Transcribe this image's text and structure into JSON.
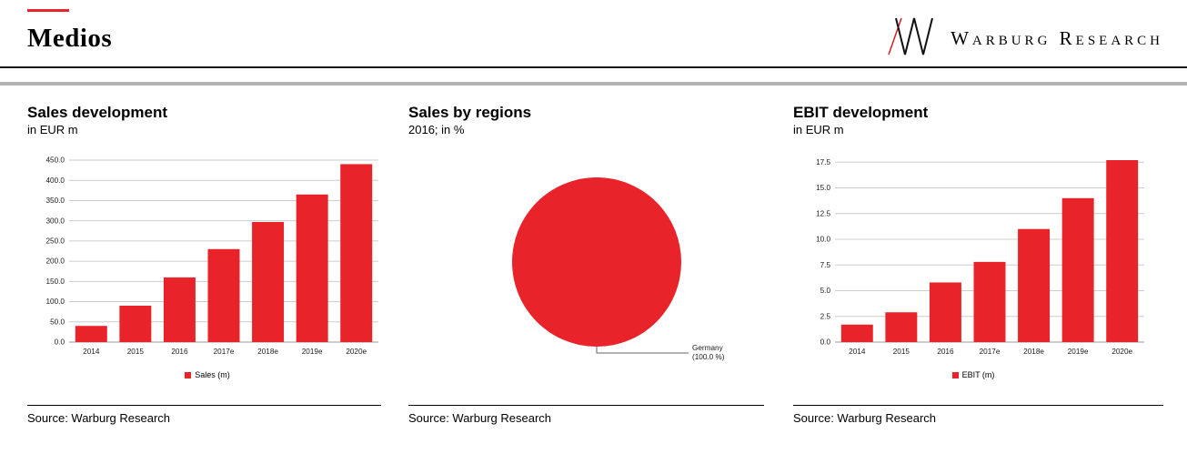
{
  "colors": {
    "accent": "#e8232a",
    "grid": "#cccccc",
    "zero_line": "#999999",
    "divider_dark": "#161616",
    "divider_gray": "#b2b2b2"
  },
  "header": {
    "title": "Medios",
    "brand": "Warburg Research"
  },
  "footer": {
    "sources": [
      "Source: Warburg Research",
      "Source: Warburg Research",
      "Source: Warburg Research"
    ]
  },
  "chart_data": [
    {
      "type": "bar",
      "title": "Sales development",
      "subtitle": "in EUR m",
      "categories": [
        "2014",
        "2015",
        "2016",
        "2017e",
        "2018e",
        "2019e",
        "2020e"
      ],
      "values": [
        40,
        90,
        160,
        230,
        297,
        365,
        440
      ],
      "legend": "Sales (m)",
      "ylim": [
        0,
        450
      ],
      "ytick_step": 50,
      "grid": true,
      "legend_position": "bottom"
    },
    {
      "type": "pie",
      "title": "Sales by regions",
      "subtitle": "2016; in %",
      "slices": [
        {
          "label": "Germany",
          "value": 100.0
        }
      ],
      "callout_label": "Germany",
      "callout_value": "(100.0 %)",
      "legend_position": "none"
    },
    {
      "type": "bar",
      "title": "EBIT development",
      "subtitle": "in EUR m",
      "categories": [
        "2014",
        "2015",
        "2016",
        "2017e",
        "2018e",
        "2019e",
        "2020e"
      ],
      "values": [
        1.7,
        2.9,
        5.8,
        7.8,
        11.0,
        14.0,
        17.7
      ],
      "legend": "EBIT (m)",
      "ylim": [
        0,
        17.5
      ],
      "ytick_step": 2.5,
      "grid": true,
      "legend_position": "bottom"
    }
  ]
}
